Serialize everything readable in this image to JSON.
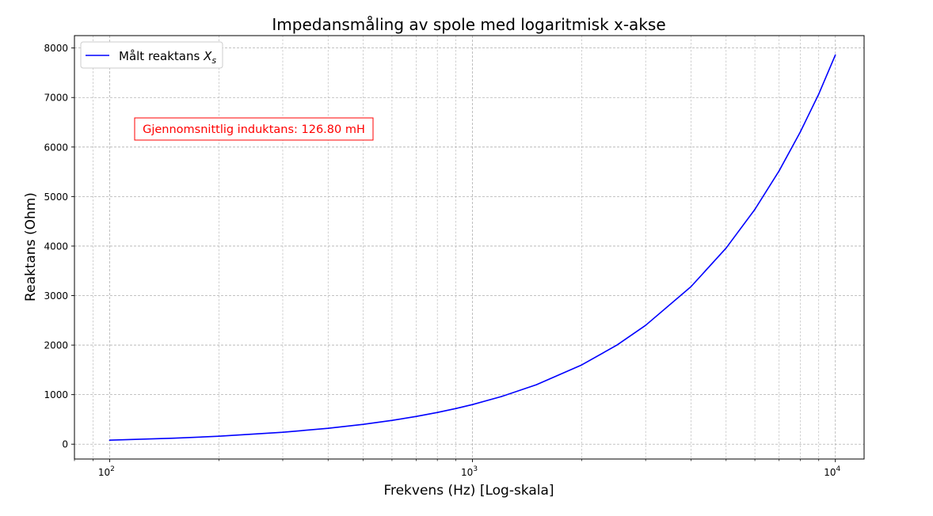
{
  "chart_data": {
    "type": "line",
    "title": "Impedansmåling av spole med logaritmisk x-akse",
    "xlabel": "Frekvens (Hz) [Log-skala]",
    "ylabel": "Reaktans (Ohm)",
    "x_scale": "log",
    "xlim": [
      80,
      12000
    ],
    "ylim": [
      -300,
      8250
    ],
    "x_ticks": [
      {
        "value": 100,
        "base": "10",
        "exp": "2"
      },
      {
        "value": 1000,
        "base": "10",
        "exp": "3"
      },
      {
        "value": 10000,
        "base": "10",
        "exp": "4"
      }
    ],
    "x_minor_ticks": [
      80,
      90,
      200,
      300,
      400,
      500,
      600,
      700,
      800,
      900,
      2000,
      3000,
      4000,
      5000,
      6000,
      7000,
      8000,
      9000
    ],
    "y_ticks": [
      0,
      1000,
      2000,
      3000,
      4000,
      5000,
      6000,
      7000,
      8000
    ],
    "grid": true,
    "grid_style": "dashed",
    "legend_placement": "upper-left",
    "colors": {
      "series": "#0000ff",
      "annotation": "#ff0000",
      "grid": "#b0b0b0"
    },
    "series": [
      {
        "legend_text": "Målt reaktans ",
        "legend_math_base": "X",
        "legend_math_sub": "s",
        "color": "#0000ff",
        "points": [
          [
            100,
            80
          ],
          [
            150,
            120
          ],
          [
            200,
            160
          ],
          [
            300,
            240
          ],
          [
            400,
            320
          ],
          [
            500,
            400
          ],
          [
            600,
            480
          ],
          [
            700,
            560
          ],
          [
            800,
            640
          ],
          [
            900,
            720
          ],
          [
            1000,
            800
          ],
          [
            1200,
            960
          ],
          [
            1500,
            1200
          ],
          [
            2000,
            1600
          ],
          [
            2500,
            2000
          ],
          [
            3000,
            2400
          ],
          [
            4000,
            3180
          ],
          [
            5000,
            3960
          ],
          [
            6000,
            4740
          ],
          [
            7000,
            5520
          ],
          [
            8000,
            6300
          ],
          [
            9000,
            7070
          ],
          [
            10000,
            7860
          ]
        ]
      }
    ],
    "annotations": [
      {
        "text": "Gjennomsnittlig induktans: 126.80 mH",
        "color": "#ff0000",
        "boxed": true
      }
    ]
  }
}
